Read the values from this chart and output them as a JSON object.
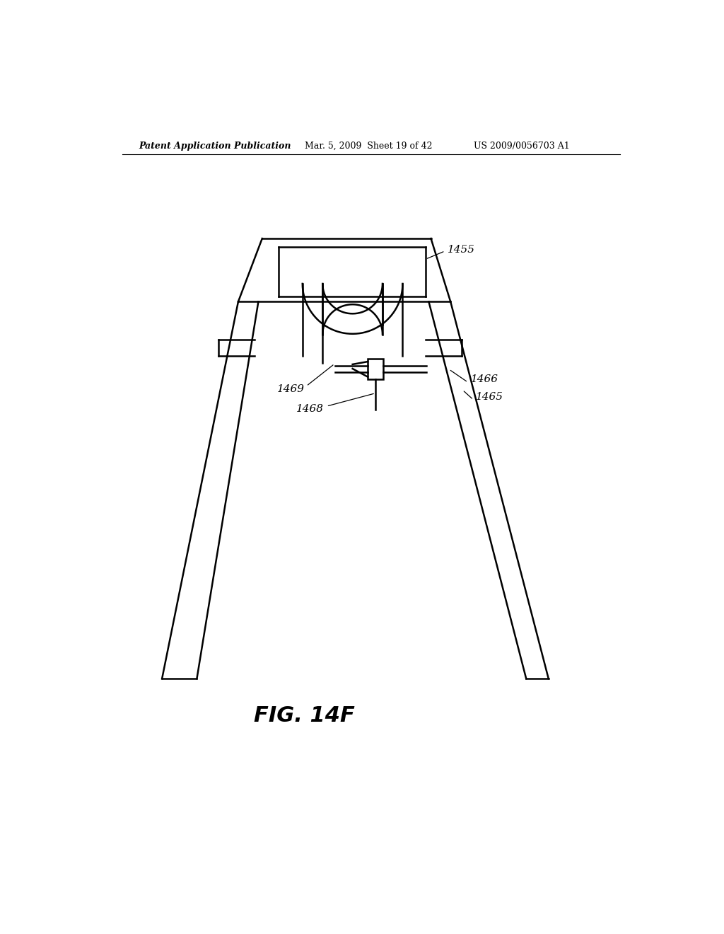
{
  "bg_color": "#ffffff",
  "line_color": "#000000",
  "header_left": "Patent Application Publication",
  "header_mid": "Mar. 5, 2009  Sheet 19 of 42",
  "header_right": "US 2009/0056703 A1",
  "fig_label": "FIG. 14F",
  "label_1455": "1455",
  "label_1469": "1469",
  "label_1468": "1468",
  "label_1466": "1466",
  "label_1465": "1465"
}
